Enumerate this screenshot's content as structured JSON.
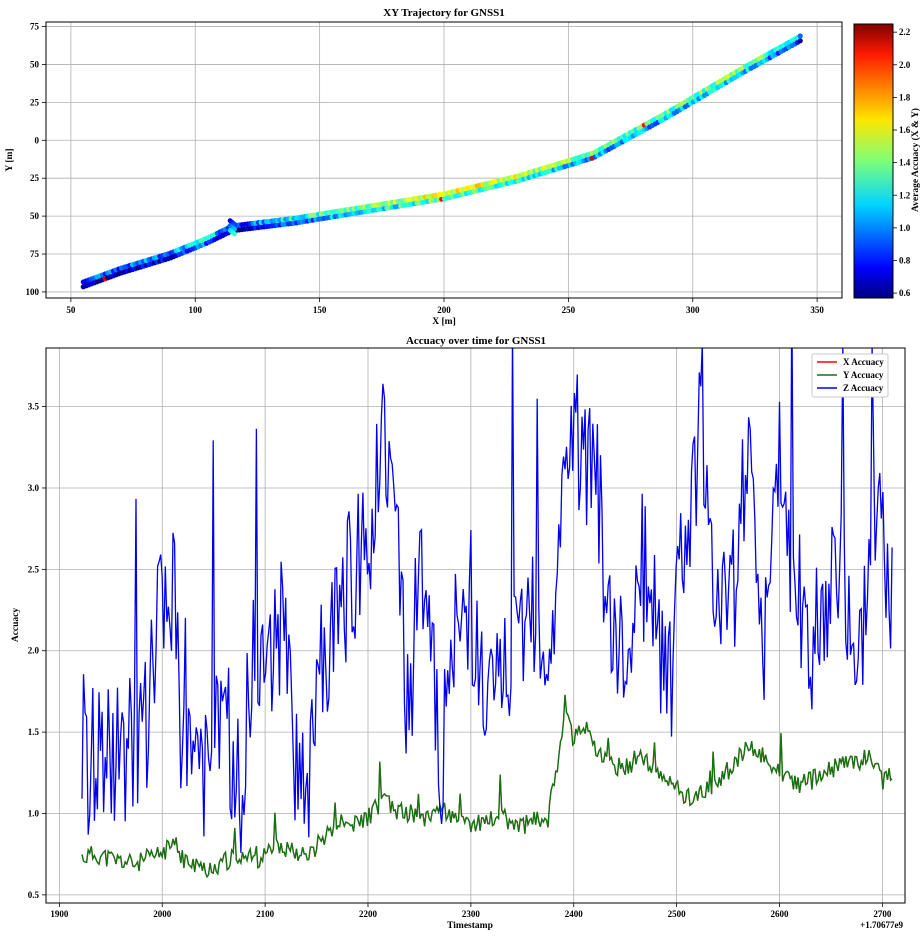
{
  "chart_data": [
    {
      "type": "scatter",
      "title": "XY Trajectory for GNSS1",
      "xlabel": "X [m]",
      "ylabel": "Y [m]",
      "xlim": [
        40,
        360
      ],
      "ylim": [
        -104,
        78
      ],
      "xticks": [
        50,
        100,
        150,
        200,
        250,
        300,
        350
      ],
      "yticks": [
        75,
        50,
        25,
        0,
        -25,
        -50,
        -75,
        -100
      ],
      "ytick_labels": [
        "75",
        "50",
        "25",
        "0",
        "25",
        "50",
        "75",
        "100"
      ],
      "grid": true,
      "colormap": "jet",
      "colorbar": {
        "label": "Average Accuacy (X & Y)",
        "min": 0.57,
        "max": 2.25,
        "ticks": [
          "0.6",
          "0.8",
          "1.0",
          "1.2",
          "1.4",
          "1.6",
          "1.8",
          "2.0",
          "2.2"
        ]
      },
      "path": {
        "x": [
          55,
          70,
          90,
          105,
          115,
          140,
          170,
          200,
          230,
          260,
          290,
          320,
          342,
          344
        ],
        "y": [
          -95,
          -86,
          -76,
          -66,
          -58,
          -53,
          -45,
          -37,
          -25,
          -10,
          17,
          46,
          66,
          68
        ]
      },
      "accuracy": [
        0.8,
        0.8,
        0.9,
        1.1,
        0.7,
        1.1,
        1.3,
        1.5,
        1.4,
        1.2,
        1.2,
        1.3,
        1.0,
        0.8
      ]
    },
    {
      "type": "line",
      "title": "Accuacy over time for GNSS1",
      "xlabel": "Timestamp",
      "ylabel": "Accuacy",
      "x_offset_label": "+1.70677e9",
      "xlim": [
        1887,
        2722
      ],
      "ylim": [
        0.45,
        3.86
      ],
      "xticks": [
        1900,
        2000,
        2100,
        2200,
        2300,
        2400,
        2500,
        2600,
        2700
      ],
      "yticks": [
        "0.5",
        "1.0",
        "1.5",
        "2.0",
        "2.5",
        "3.0",
        "3.5"
      ],
      "grid": true,
      "legend": "top-right",
      "x": [
        1922,
        1935,
        1950,
        1965,
        1975,
        1985,
        1995,
        2005,
        2012,
        2020,
        2030,
        2045,
        2060,
        2075,
        2090,
        2100,
        2115,
        2130,
        2140,
        2155,
        2170,
        2185,
        2200,
        2210,
        2215,
        2225,
        2240,
        2255,
        2270,
        2285,
        2300,
        2315,
        2330,
        2345,
        2360,
        2375,
        2385,
        2392,
        2400,
        2410,
        2420,
        2435,
        2450,
        2465,
        2480,
        2495,
        2510,
        2525,
        2540,
        2555,
        2570,
        2585,
        2600,
        2615,
        2630,
        2645,
        2660,
        2675,
        2690,
        2700,
        2710
      ],
      "series": [
        {
          "name": "X Accuacy",
          "color": "#ff0000",
          "values": [
            0.73,
            0.75,
            0.72,
            0.7,
            0.69,
            0.72,
            0.74,
            0.78,
            0.82,
            0.72,
            0.68,
            0.66,
            0.7,
            0.75,
            0.72,
            0.74,
            0.8,
            0.78,
            0.72,
            0.85,
            0.95,
            0.92,
            0.98,
            1.05,
            1.1,
            1.02,
            1.0,
            0.98,
            1.05,
            0.95,
            0.93,
            0.96,
            0.98,
            0.92,
            0.95,
            0.97,
            1.35,
            1.7,
            1.45,
            1.55,
            1.4,
            1.3,
            1.28,
            1.35,
            1.25,
            1.18,
            1.1,
            1.12,
            1.2,
            1.3,
            1.4,
            1.35,
            1.25,
            1.18,
            1.2,
            1.25,
            1.3,
            1.32,
            1.35,
            1.2,
            1.23
          ]
        },
        {
          "name": "Y Accuacy",
          "color": "#127312",
          "values": [
            0.73,
            0.75,
            0.72,
            0.7,
            0.69,
            0.72,
            0.74,
            0.78,
            0.82,
            0.72,
            0.68,
            0.66,
            0.7,
            0.75,
            0.72,
            0.74,
            0.8,
            0.78,
            0.72,
            0.85,
            0.95,
            0.92,
            0.98,
            1.05,
            1.1,
            1.02,
            1.0,
            0.98,
            1.05,
            0.95,
            0.93,
            0.96,
            0.98,
            0.92,
            0.95,
            0.97,
            1.35,
            1.7,
            1.45,
            1.55,
            1.4,
            1.3,
            1.28,
            1.35,
            1.25,
            1.18,
            1.1,
            1.12,
            1.2,
            1.3,
            1.4,
            1.35,
            1.25,
            1.18,
            1.2,
            1.25,
            1.3,
            1.32,
            1.35,
            1.2,
            1.23
          ]
        },
        {
          "name": "Z Accuacy",
          "color": "#0000ee",
          "values": [
            1.21,
            1.42,
            1.38,
            1.4,
            1.45,
            1.5,
            2.1,
            2.3,
            2.45,
            1.2,
            1.55,
            1.2,
            1.65,
            1.1,
            2.05,
            1.8,
            2.2,
            1.3,
            1.05,
            2.0,
            2.1,
            2.5,
            2.6,
            3.2,
            3.55,
            2.9,
            1.4,
            2.7,
            1.2,
            2.1,
            2.3,
            1.6,
            1.9,
            2.0,
            2.2,
            2.05,
            2.45,
            3.3,
            3.4,
            3.1,
            3.2,
            2.2,
            2.0,
            2.6,
            2.1,
            1.8,
            2.8,
            3.45,
            2.1,
            2.3,
            3.25,
            2.1,
            3.2,
            2.4,
            2.0,
            2.2,
            2.7,
            1.7,
            2.95,
            2.9,
            2.15
          ]
        }
      ]
    }
  ]
}
